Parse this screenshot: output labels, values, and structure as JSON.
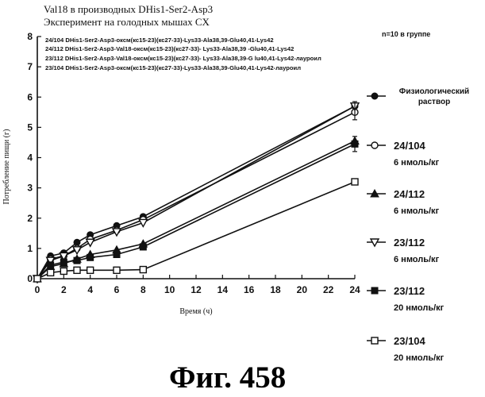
{
  "chart_data": {
    "type": "line",
    "title_lines": [
      "Val18 в производных DHis1-Ser2-Asp3",
      "Эксперимент на голодных мышах CX"
    ],
    "xlabel": "Время (ч)",
    "ylabel": "Потребление пищи (г)",
    "group_note": "n=10 в группе",
    "xlim": [
      0,
      24
    ],
    "ylim": [
      0,
      8
    ],
    "x_ticks": [
      0,
      2,
      4,
      6,
      8,
      10,
      12,
      14,
      16,
      18,
      20,
      22,
      24
    ],
    "y_ticks": [
      0,
      1,
      2,
      3,
      4,
      5,
      6,
      7,
      8
    ],
    "x": [
      0,
      1,
      2,
      3,
      4,
      6,
      8,
      24
    ],
    "series_descriptions": [
      "24/104 DHis1-Ser2-Asp3-оксм(кс15-23)(кс27-33)-Lys33-Ala38,39-Glu40,41-Lys42",
      "24/112 DHis1-Ser2-Asp3-Val18-оксм(кс15-23)(кс27-33)- Lys33-Ala38,39 -Glu40,41-Lys42",
      "23/112 DHis1-Ser2-Asp3-Val18-оксм(кс15-23)(кс27-33)- Lys33-Ala38,39-G lu40,41-Lys42-лауроил",
      "23/104 DHis1-Ser2-Asp3-оксм(кс15-23)(кс27-33)-Lys33-Ala38,39-Glu40,41-Lys42-лауроил"
    ],
    "series": [
      {
        "name": "Физиологический раствор",
        "marker": "filled-circle",
        "values": [
          0,
          0.75,
          0.85,
          1.2,
          1.45,
          1.75,
          2.05,
          5.7
        ]
      },
      {
        "name": "24/104",
        "marker": "open-circle",
        "values": [
          0,
          0.65,
          0.75,
          1.0,
          1.3,
          1.6,
          1.95,
          5.5
        ]
      },
      {
        "name": "24/112",
        "marker": "filled-triangle",
        "values": [
          0,
          0.4,
          0.5,
          0.65,
          0.8,
          0.95,
          1.15,
          4.55
        ]
      },
      {
        "name": "23/112",
        "marker": "open-triangle-down",
        "values": [
          0,
          0.6,
          0.75,
          0.95,
          1.2,
          1.55,
          1.85,
          5.7
        ]
      },
      {
        "name": "23/112",
        "marker": "filled-square",
        "values": [
          0,
          0.45,
          0.55,
          0.6,
          0.7,
          0.8,
          1.05,
          4.45
        ]
      },
      {
        "name": "23/104",
        "marker": "open-square",
        "values": [
          0,
          0.2,
          0.25,
          0.28,
          0.28,
          0.28,
          0.3,
          3.2
        ]
      }
    ]
  },
  "legend": [
    {
      "lines": [
        "Физиологический",
        "раствор"
      ]
    },
    {
      "lines": [
        "24/104",
        "6 нмоль/кг"
      ]
    },
    {
      "lines": [
        "24/112",
        "6 нмоль/кг"
      ]
    },
    {
      "lines": [
        "23/112",
        "6 нмоль/кг"
      ]
    },
    {
      "lines": [
        "23/112",
        "20 нмоль/кг"
      ]
    },
    {
      "lines": [
        "23/104",
        "20 нмоль/кг"
      ]
    }
  ],
  "figure_label": "Фиг.  458"
}
